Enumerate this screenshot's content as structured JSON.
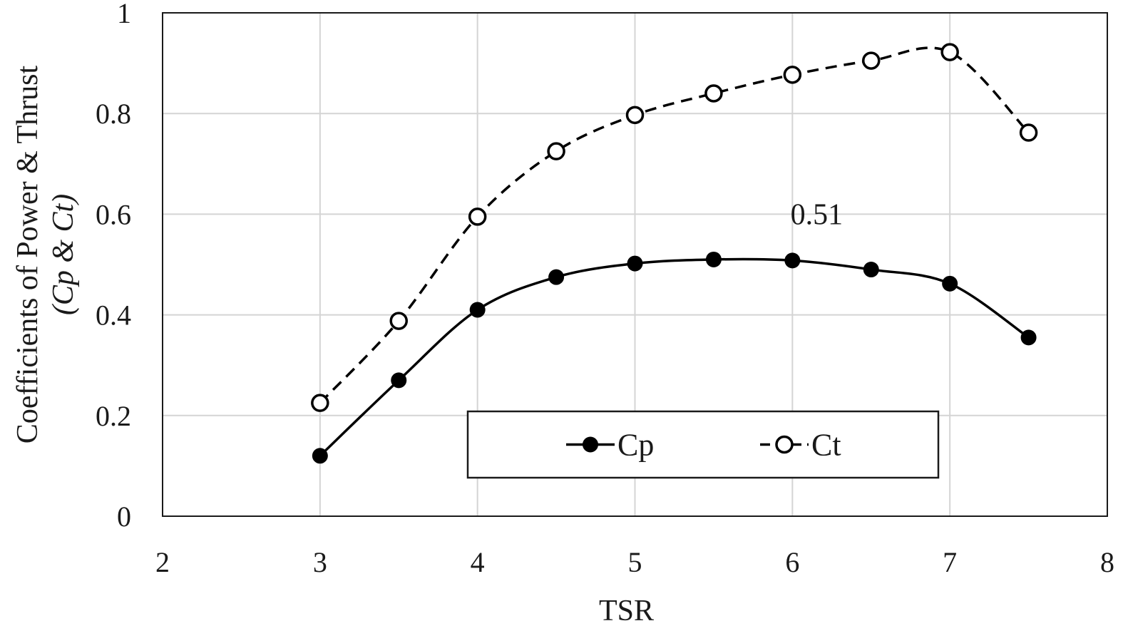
{
  "chart_data": {
    "type": "line",
    "title": "",
    "xlabel": "TSR",
    "ylabel": "Coefficients of Power & Thrust",
    "ylabel_sub": "(Cp & Ct)",
    "xlim": [
      2,
      8
    ],
    "ylim": [
      0,
      1
    ],
    "xticks": [
      2,
      3,
      4,
      5,
      6,
      7,
      8
    ],
    "yticks": [
      0,
      0.2,
      0.4,
      0.6,
      0.8,
      1
    ],
    "ytick_labels": [
      "0",
      "0.2",
      "0.4",
      "0.6",
      "0.8",
      "1"
    ],
    "xtick_labels": [
      "2",
      "3",
      "4",
      "5",
      "6",
      "7",
      "8"
    ],
    "grid": true,
    "legend_position": "bottom-center",
    "x": [
      3,
      3.5,
      4,
      4.5,
      5,
      5.5,
      6,
      6.5,
      7,
      7.5
    ],
    "series": [
      {
        "name": "Cp",
        "marker": "filled-circle",
        "line": "solid",
        "values": [
          0.12,
          0.27,
          0.41,
          0.475,
          0.502,
          0.51,
          0.508,
          0.49,
          0.462,
          0.355
        ]
      },
      {
        "name": "Ct",
        "marker": "open-circle",
        "line": "dashed",
        "values": [
          0.225,
          0.388,
          0.595,
          0.725,
          0.797,
          0.84,
          0.877,
          0.905,
          0.922,
          0.762
        ]
      }
    ],
    "annotations": [
      {
        "text": "0.51",
        "x": 6.0,
        "y": 0.6
      }
    ]
  }
}
